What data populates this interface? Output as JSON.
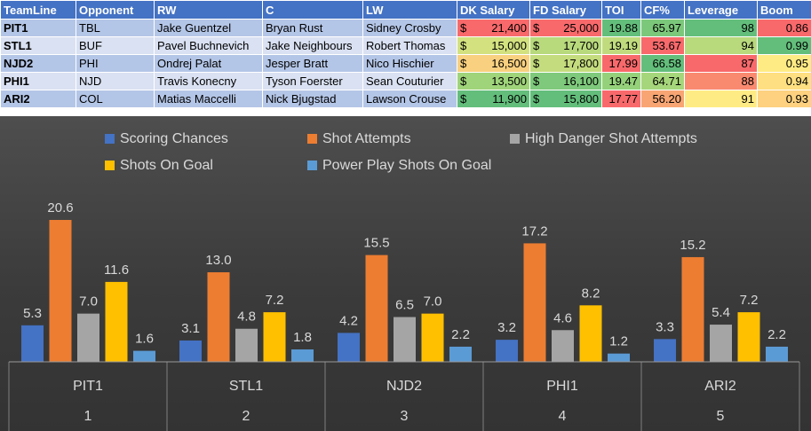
{
  "table": {
    "headers": [
      "TeamLine",
      "Opponent",
      "RW",
      "C",
      "LW",
      "DK Salary",
      "FD Salary",
      "TOI",
      "CF%",
      "Leverage",
      "Boom"
    ],
    "rows": [
      {
        "team": "PIT1",
        "opp": "TBL",
        "rw": "Jake Guentzel",
        "c": "Bryan Rust",
        "lw": "Sidney Crosby",
        "dk": "21,400",
        "fd": "25,000",
        "toi": "19.88",
        "cf": "65.97",
        "lev": "98",
        "boom": "0.86"
      },
      {
        "team": "STL1",
        "opp": "BUF",
        "rw": "Pavel Buchnevich",
        "c": "Jake Neighbours",
        "lw": "Robert Thomas",
        "dk": "15,000",
        "fd": "17,700",
        "toi": "19.19",
        "cf": "53.67",
        "lev": "94",
        "boom": "0.99"
      },
      {
        "team": "NJD2",
        "opp": "PHI",
        "rw": "Ondrej Palat",
        "c": "Jesper Bratt",
        "lw": "Nico Hischier",
        "dk": "16,500",
        "fd": "17,800",
        "toi": "17.99",
        "cf": "66.58",
        "lev": "87",
        "boom": "0.95"
      },
      {
        "team": "PHI1",
        "opp": "NJD",
        "rw": "Travis Konecny",
        "c": "Tyson Foerster",
        "lw": "Sean Couturier",
        "dk": "13,500",
        "fd": "16,100",
        "toi": "19.47",
        "cf": "64.71",
        "lev": "88",
        "boom": "0.94"
      },
      {
        "team": "ARI2",
        "opp": "COL",
        "rw": "Matias Maccelli",
        "c": "Nick Bjugstad",
        "lw": "Lawson Crouse",
        "dk": "11,900",
        "fd": "15,800",
        "toi": "17.77",
        "cf": "56.20",
        "lev": "91",
        "boom": "0.93"
      }
    ],
    "currency_symbol": "$",
    "cell_colors": {
      "dk": [
        "#f8696b",
        "#d3e17f",
        "#f8d07f",
        "#9fd47a",
        "#63be7b"
      ],
      "fd": [
        "#f8696b",
        "#b8d97c",
        "#c4dc7d",
        "#7ec97b",
        "#63be7b"
      ],
      "toi": [
        "#63be7b",
        "#c0db7d",
        "#f8696b",
        "#95d17a",
        "#f8696b"
      ],
      "cf": [
        "#7cc87b",
        "#f8696b",
        "#63be7b",
        "#a6d67b",
        "#f8a573"
      ],
      "lev": [
        "#63be7b",
        "#b8d97c",
        "#f8696b",
        "#f98a70",
        "#ffeb84"
      ],
      "boom": [
        "#f8696b",
        "#63be7b",
        "#ffeb84",
        "#fedf81",
        "#fdd17f"
      ]
    }
  },
  "chart_data": {
    "type": "bar",
    "categories": [
      {
        "name": "PIT1",
        "number": "1"
      },
      {
        "name": "STL1",
        "number": "2"
      },
      {
        "name": "NJD2",
        "number": "3"
      },
      {
        "name": "PHI1",
        "number": "4"
      },
      {
        "name": "ARI2",
        "number": "5"
      }
    ],
    "series": [
      {
        "name": "Scoring Chances",
        "color": "#4472c4",
        "values": [
          5.3,
          3.1,
          4.2,
          3.2,
          3.3
        ],
        "labels": [
          "5.3",
          "3.1",
          "4.2",
          "3.2",
          "3.3"
        ]
      },
      {
        "name": "Shot Attempts",
        "color": "#ed7d31",
        "values": [
          20.6,
          13.0,
          15.5,
          17.2,
          15.2
        ],
        "labels": [
          "20.6",
          "13.0",
          "15.5",
          "17.2",
          "15.2"
        ]
      },
      {
        "name": "High Danger Shot Attempts",
        "color": "#a5a5a5",
        "values": [
          7.0,
          4.8,
          6.5,
          4.6,
          5.4
        ],
        "labels": [
          "7.0",
          "4.8",
          "6.5",
          "4.6",
          "5.4"
        ]
      },
      {
        "name": "Shots On Goal",
        "color": "#ffc000",
        "values": [
          11.6,
          7.2,
          7.0,
          8.2,
          7.2
        ],
        "labels": [
          "11.6",
          "7.2",
          "7.0",
          "8.2",
          "7.2"
        ]
      },
      {
        "name": "Power Play Shots On Goal",
        "color": "#5b9bd5",
        "values": [
          1.6,
          1.8,
          2.2,
          1.2,
          2.2
        ],
        "labels": [
          "1.6",
          "1.8",
          "2.2",
          "1.2",
          "2.2"
        ]
      }
    ],
    "ylim": [
      0,
      22
    ],
    "legend_position": "top",
    "grid": false,
    "data_labels": true
  }
}
